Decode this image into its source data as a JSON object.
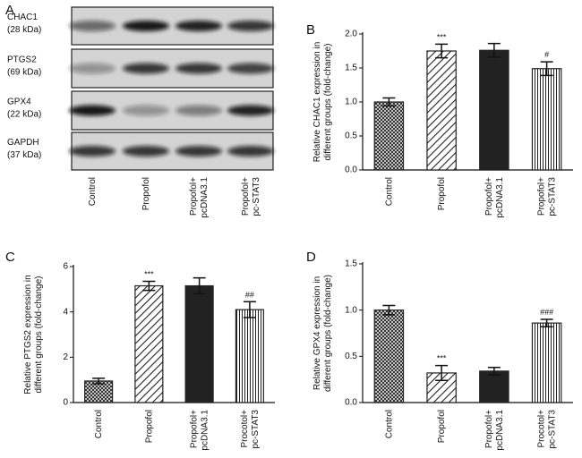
{
  "blot": {
    "label": "A",
    "rows": [
      "CHAC1\n(28 kDa)",
      "PTGS2\n(69 kDa)",
      "GPX4\n(22 kDa)",
      "GAPDH\n(37 kDa)"
    ],
    "lanes": [
      "Control",
      "Propofol",
      "Propofol+\npcDNA3.1",
      "Propofol+\npc-STAT3"
    ]
  },
  "chart_data": [
    {
      "type": "bar",
      "label": "B",
      "y_label": "Relative CHAC1 expression in\ndifferent groups (fold-change)",
      "categories": [
        "Control",
        "Propofol",
        "Propofol+\npcDNA3.1",
        "Propofol+\npc-STAT3"
      ],
      "values": [
        1.0,
        1.75,
        1.76,
        1.49
      ],
      "errors": [
        0.06,
        0.1,
        0.1,
        0.1
      ],
      "annotations": [
        null,
        "***",
        null,
        "#"
      ],
      "patterns": [
        "crosshatch",
        "diagonal",
        "solid",
        "vertical"
      ],
      "color": "#222222",
      "ylim": [
        0,
        2
      ],
      "yticks": [
        {
          "value": 0,
          "label": "0.0"
        },
        0.5,
        {
          "value": 1,
          "label": "1.0"
        },
        1.5,
        {
          "value": 2,
          "label": "2.0"
        }
      ]
    },
    {
      "type": "bar",
      "label": "C",
      "y_label": "Relative PTGS2 expression in\ndifferent groups (fold-change)",
      "categories": [
        "Control",
        "Propofol",
        "Propofol+\npcDNA3.1",
        "Procotol+\npc-STAT3"
      ],
      "values": [
        0.95,
        5.15,
        5.15,
        4.1
      ],
      "errors": [
        0.12,
        0.2,
        0.35,
        0.35
      ],
      "annotations": [
        null,
        "***",
        null,
        "##"
      ],
      "patterns": [
        "crosshatch",
        "diagonal",
        "solid",
        "vertical"
      ],
      "color": "#222222",
      "ylim": [
        0,
        6
      ],
      "yticks": [
        0,
        2,
        4,
        6
      ]
    },
    {
      "type": "bar",
      "label": "D",
      "y_label": "Relative GPX4 expression in\ndifferent groups (fold-change)",
      "categories": [
        "Control",
        "Propofol",
        "Propofol+\npcDNA3.1",
        "Procotol+\npc-STAT3"
      ],
      "values": [
        1.0,
        0.32,
        0.34,
        0.86
      ],
      "errors": [
        0.05,
        0.08,
        0.04,
        0.04
      ],
      "annotations": [
        null,
        "***",
        null,
        "###"
      ],
      "patterns": [
        "crosshatch",
        "diagonal",
        "solid",
        "vertical"
      ],
      "color": "#222222",
      "ylim": [
        0,
        1.5
      ],
      "yticks": [
        {
          "value": 0,
          "label": "0.0"
        },
        0.5,
        {
          "value": 1,
          "label": "1.0"
        },
        1.5
      ]
    }
  ]
}
